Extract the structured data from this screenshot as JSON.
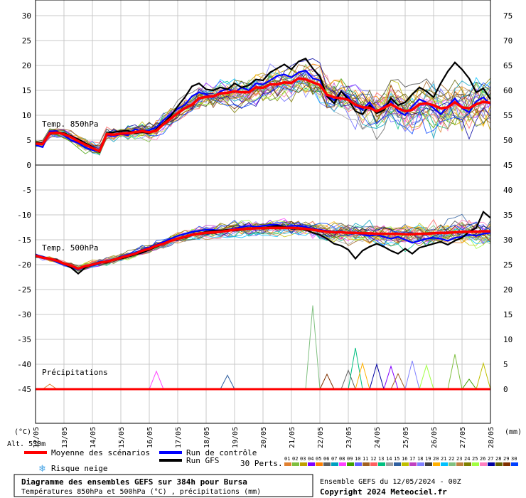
{
  "chart_data": {
    "type": "line",
    "title": "Diagramme des ensembles GEFS sur 384h pour Bursa",
    "subtitle": "Températures 850hPa et 500hPa (°C) , précipitations (mm)",
    "run_info": "Ensemble GEFS du 12/05/2024 - 00Z",
    "copyright": "Copyright 2024 Meteociel.fr",
    "altitude": "Alt. 530m",
    "left_unit": "(°C)",
    "right_unit": "(mm)",
    "left_ticks": [
      30,
      25,
      20,
      15,
      10,
      5,
      0,
      -5,
      -10,
      -15,
      -20,
      -25,
      -30,
      -35,
      -40,
      -45
    ],
    "right_ticks": [
      75,
      70,
      65,
      60,
      55,
      50,
      45,
      40,
      35,
      30,
      25,
      20,
      15,
      10,
      5,
      0
    ],
    "ylim": [
      -45,
      30
    ],
    "x_dates": [
      "13/05",
      "14/05",
      "15/05",
      "16/05",
      "17/05",
      "18/05",
      "19/05",
      "20/05",
      "21/05",
      "22/05",
      "23/05",
      "24/05",
      "25/05",
      "26/05",
      "27/05",
      "28/05"
    ],
    "x_first_label": "12/05",
    "panel_labels": {
      "t850": "Temp. 850hPa",
      "t500": "Temp. 500hPa",
      "precip": "Précipitations"
    },
    "x": [
      0,
      6,
      12,
      18,
      24,
      30,
      36,
      42,
      48,
      54,
      60,
      66,
      72,
      78,
      84,
      90,
      96,
      102,
      108,
      114,
      120,
      126,
      132,
      138,
      144,
      150,
      156,
      162,
      168,
      174,
      180,
      186,
      192,
      198,
      204,
      210,
      216,
      222,
      228,
      234,
      240,
      246,
      252,
      258,
      264,
      270,
      276,
      282,
      288,
      294,
      300,
      306,
      312,
      318,
      324,
      330,
      336,
      342,
      348,
      354,
      360,
      366,
      372,
      378,
      384
    ],
    "x_unit": "hours since 12/05 00Z",
    "series": [
      {
        "name": "Moyenne des scénarios",
        "color": "#ff0000",
        "panel": "t850",
        "values": [
          4.3,
          4.2,
          6.4,
          6.5,
          6.2,
          5.6,
          4.8,
          4.1,
          3.4,
          2.8,
          6.2,
          6.1,
          6.3,
          6.4,
          6.6,
          6.8,
          6.6,
          6.9,
          8.2,
          9.3,
          10.4,
          11.4,
          12.1,
          13.4,
          13.7,
          13.8,
          14.4,
          14.5,
          14.8,
          14.6,
          14.6,
          15.6,
          15.5,
          16.2,
          16.2,
          16.6,
          16.5,
          17.4,
          17.2,
          16.6,
          16.1,
          14.1,
          13.6,
          13.4,
          13.1,
          12.1,
          11.6,
          11.5,
          10.8,
          11.5,
          12.2,
          11.4,
          10.8,
          11.1,
          12.2,
          12.4,
          12.0,
          11.4,
          11.6,
          12.6,
          11.6,
          11.4,
          12.2,
          12.7,
          12.5
        ]
      },
      {
        "name": "Run de contrôle",
        "color": "#0000ff",
        "panel": "t850",
        "values": [
          4.0,
          3.6,
          6.7,
          6.8,
          6.0,
          5.0,
          4.4,
          3.5,
          3.0,
          2.7,
          6.0,
          5.8,
          6.2,
          6.0,
          7.2,
          6.8,
          7.0,
          7.6,
          9.0,
          10.2,
          11.3,
          12.1,
          13.8,
          14.6,
          14.2,
          13.6,
          14.8,
          15.3,
          14.6,
          15.6,
          15.0,
          16.4,
          16.2,
          17.0,
          17.9,
          18.2,
          17.6,
          18.6,
          19.0,
          17.4,
          17.0,
          14.0,
          13.0,
          14.8,
          13.7,
          11.8,
          11.2,
          12.6,
          10.6,
          11.8,
          12.8,
          10.8,
          10.0,
          11.8,
          13.2,
          12.6,
          11.4,
          10.2,
          11.8,
          13.4,
          11.4,
          10.6,
          12.8,
          13.6,
          12.2
        ]
      },
      {
        "name": "Run GFS",
        "color": "#000000",
        "panel": "t850",
        "values": [
          4.5,
          4.4,
          6.2,
          6.6,
          6.4,
          5.8,
          5.2,
          4.4,
          3.6,
          2.6,
          6.4,
          6.6,
          6.8,
          6.9,
          6.4,
          6.6,
          6.4,
          7.2,
          8.4,
          9.8,
          11.8,
          13.6,
          15.8,
          16.4,
          15.2,
          15.0,
          15.6,
          15.2,
          16.4,
          15.6,
          16.0,
          17.2,
          17.0,
          18.6,
          19.4,
          20.2,
          19.2,
          20.8,
          21.4,
          19.4,
          17.8,
          13.8,
          12.4,
          14.8,
          13.2,
          10.8,
          10.2,
          12.0,
          10.4,
          11.0,
          13.4,
          12.0,
          12.6,
          14.2,
          15.6,
          14.8,
          13.6,
          16.4,
          18.8,
          20.6,
          19.2,
          17.4,
          14.6,
          15.4,
          13.2
        ]
      },
      {
        "name": "Moyenne des scénarios",
        "color": "#ff0000",
        "panel": "t500",
        "values": [
          -18.2,
          -18.6,
          -18.8,
          -19.2,
          -19.8,
          -20.2,
          -20.8,
          -20.3,
          -20.0,
          -19.6,
          -19.4,
          -19.0,
          -18.6,
          -18.2,
          -17.8,
          -17.2,
          -16.8,
          -16.2,
          -15.8,
          -15.2,
          -14.8,
          -14.4,
          -14.0,
          -13.8,
          -13.6,
          -13.5,
          -13.4,
          -13.2,
          -13.0,
          -12.9,
          -12.8,
          -12.7,
          -12.7,
          -12.6,
          -12.6,
          -12.6,
          -12.6,
          -12.7,
          -12.8,
          -13.0,
          -13.2,
          -13.4,
          -13.5,
          -13.5,
          -13.6,
          -13.6,
          -13.7,
          -13.7,
          -13.8,
          -13.8,
          -13.8,
          -13.8,
          -13.9,
          -13.9,
          -13.8,
          -13.8,
          -13.7,
          -13.6,
          -13.6,
          -13.5,
          -13.4,
          -13.4,
          -13.4,
          -13.3,
          -13.3
        ]
      },
      {
        "name": "Run de contrôle",
        "color": "#0000ff",
        "panel": "t500",
        "values": [
          -18.0,
          -18.4,
          -18.8,
          -19.4,
          -20.0,
          -20.4,
          -21.0,
          -20.4,
          -20.2,
          -19.8,
          -19.2,
          -19.0,
          -18.4,
          -18.0,
          -17.6,
          -17.0,
          -16.6,
          -16.0,
          -15.4,
          -14.8,
          -14.2,
          -13.8,
          -13.4,
          -13.2,
          -13.0,
          -13.0,
          -13.2,
          -13.0,
          -12.8,
          -12.4,
          -12.2,
          -12.4,
          -12.2,
          -12.0,
          -12.0,
          -12.4,
          -12.2,
          -12.2,
          -12.4,
          -12.8,
          -13.0,
          -13.2,
          -13.4,
          -13.4,
          -13.6,
          -13.6,
          -14.0,
          -14.2,
          -14.0,
          -14.4,
          -14.8,
          -14.4,
          -15.0,
          -15.6,
          -15.2,
          -14.8,
          -14.6,
          -14.8,
          -15.2,
          -14.6,
          -14.4,
          -14.0,
          -14.2,
          -13.8,
          -13.6
        ]
      },
      {
        "name": "Run GFS",
        "color": "#000000",
        "panel": "t500",
        "values": [
          -18.4,
          -18.6,
          -18.8,
          -19.0,
          -19.8,
          -20.6,
          -21.8,
          -20.6,
          -20.0,
          -19.6,
          -19.6,
          -19.0,
          -18.8,
          -18.4,
          -18.0,
          -17.6,
          -17.0,
          -16.4,
          -15.8,
          -15.2,
          -14.8,
          -14.6,
          -14.0,
          -13.8,
          -13.4,
          -13.2,
          -13.2,
          -13.0,
          -13.2,
          -13.0,
          -12.8,
          -12.6,
          -12.6,
          -12.4,
          -12.2,
          -12.4,
          -12.8,
          -12.8,
          -13.0,
          -13.6,
          -14.0,
          -14.8,
          -15.8,
          -16.2,
          -17.0,
          -18.8,
          -17.2,
          -16.4,
          -15.8,
          -16.4,
          -17.2,
          -17.8,
          -16.8,
          -17.8,
          -16.6,
          -16.2,
          -15.8,
          -15.4,
          -16.0,
          -15.2,
          -14.6,
          -13.4,
          -12.6,
          -9.4,
          -10.6
        ]
      }
    ],
    "precip": {
      "max_mm": 15,
      "events": [
        {
          "x": 12,
          "mm": 1.0
        },
        {
          "x": 102,
          "mm": 3.6
        },
        {
          "x": 162,
          "mm": 2.8
        },
        {
          "x": 234,
          "mm": 16.8
        },
        {
          "x": 246,
          "mm": 3.0
        },
        {
          "x": 264,
          "mm": 3.8
        },
        {
          "x": 270,
          "mm": 8.3
        },
        {
          "x": 276,
          "mm": 5.2
        },
        {
          "x": 288,
          "mm": 5.0
        },
        {
          "x": 300,
          "mm": 4.6
        },
        {
          "x": 306,
          "mm": 3.1
        },
        {
          "x": 318,
          "mm": 5.7
        },
        {
          "x": 330,
          "mm": 4.8
        },
        {
          "x": 354,
          "mm": 7.0
        },
        {
          "x": 366,
          "mm": 2.0
        },
        {
          "x": 378,
          "mm": 5.2
        }
      ]
    },
    "grid": true
  },
  "legend": {
    "items": [
      {
        "label": "Moyenne des scénarios",
        "color": "#ff0000"
      },
      {
        "label": "Run de contrôle",
        "color": "#0000ff"
      },
      {
        "label": "Run GFS",
        "color": "#000000"
      }
    ],
    "snow_label": "Risque neige",
    "perts_label": "30 Perts.",
    "pert_numbers": [
      "01",
      "02",
      "03",
      "04",
      "05",
      "06",
      "07",
      "08",
      "09",
      "10",
      "11",
      "12",
      "13",
      "14",
      "15",
      "16",
      "17",
      "18",
      "19",
      "20",
      "21",
      "22",
      "23",
      "24",
      "25",
      "26",
      "27",
      "28",
      "29",
      "30"
    ],
    "pert_colors": [
      "#e08030",
      "#7fbf3f",
      "#c0a000",
      "#8000ff",
      "#ff8000",
      "#606060",
      "#00a0c0",
      "#ff40ff",
      "#40a000",
      "#6060ff",
      "#a06020",
      "#ff6060",
      "#00c080",
      "#a0a0a0",
      "#3060a0",
      "#c0c000",
      "#c040c0",
      "#8080ff",
      "#404040",
      "#ffb000",
      "#00c0ff",
      "#80c080",
      "#c08040",
      "#808000",
      "#a0ff40",
      "#ff80c0",
      "#0000a0",
      "#606000",
      "#803000",
      "#0040ff"
    ]
  }
}
